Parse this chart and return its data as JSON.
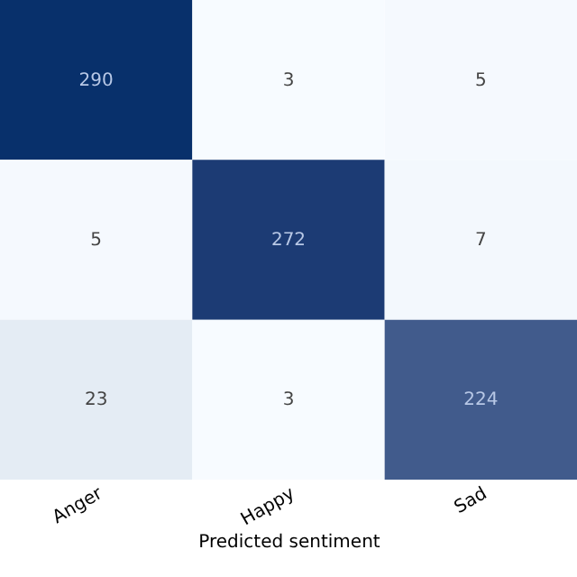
{
  "chart_data": {
    "type": "heatmap",
    "xlabel": "Predicted sentiment",
    "categories": [
      "Anger",
      "Happy",
      "Sad"
    ],
    "y_categories": [
      null,
      null,
      null
    ],
    "cells": [
      [
        290,
        3,
        5
      ],
      [
        5,
        272,
        7
      ],
      [
        23,
        3,
        224
      ]
    ],
    "tick_labels": "x",
    "data_labels": true
  }
}
